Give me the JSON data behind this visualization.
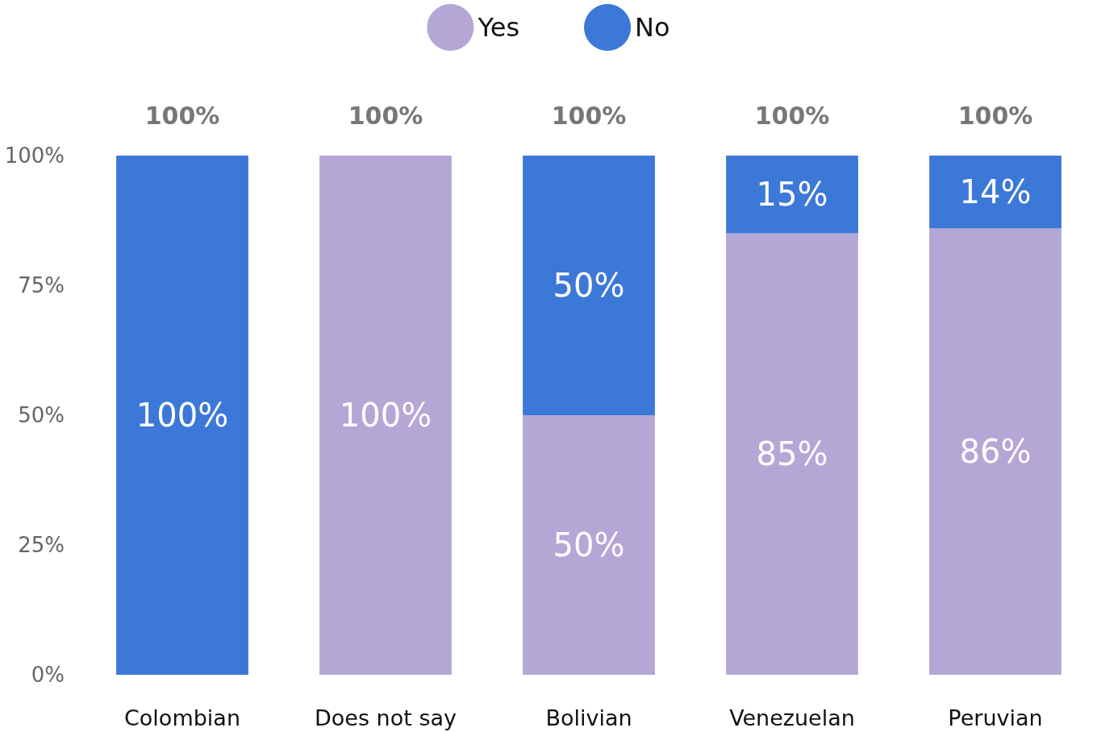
{
  "chart_data": {
    "type": "bar",
    "stacked": true,
    "categories": [
      "Colombian",
      "Does not say",
      "Bolivian",
      "Venezuelan",
      "Peruvian"
    ],
    "series": [
      {
        "name": "Yes",
        "color": "#b4a7d6",
        "values": [
          0,
          100,
          50,
          85,
          86
        ],
        "value_labels": [
          null,
          "100%",
          "50%",
          "85%",
          "86%"
        ]
      },
      {
        "name": "No",
        "color": "#3c78d8",
        "values": [
          100,
          0,
          50,
          15,
          14
        ],
        "value_labels": [
          "100%",
          null,
          "50%",
          "15%",
          "14%"
        ]
      }
    ],
    "totals": [
      "100%",
      "100%",
      "100%",
      "100%",
      "100%"
    ],
    "ylim": [
      0,
      100
    ],
    "yticks": [
      {
        "value": 0,
        "label": "0%"
      },
      {
        "value": 25,
        "label": "25%"
      },
      {
        "value": 50,
        "label": "50%"
      },
      {
        "value": 75,
        "label": "75%"
      },
      {
        "value": 100,
        "label": "100%"
      }
    ],
    "grid": false,
    "legend": "top"
  }
}
